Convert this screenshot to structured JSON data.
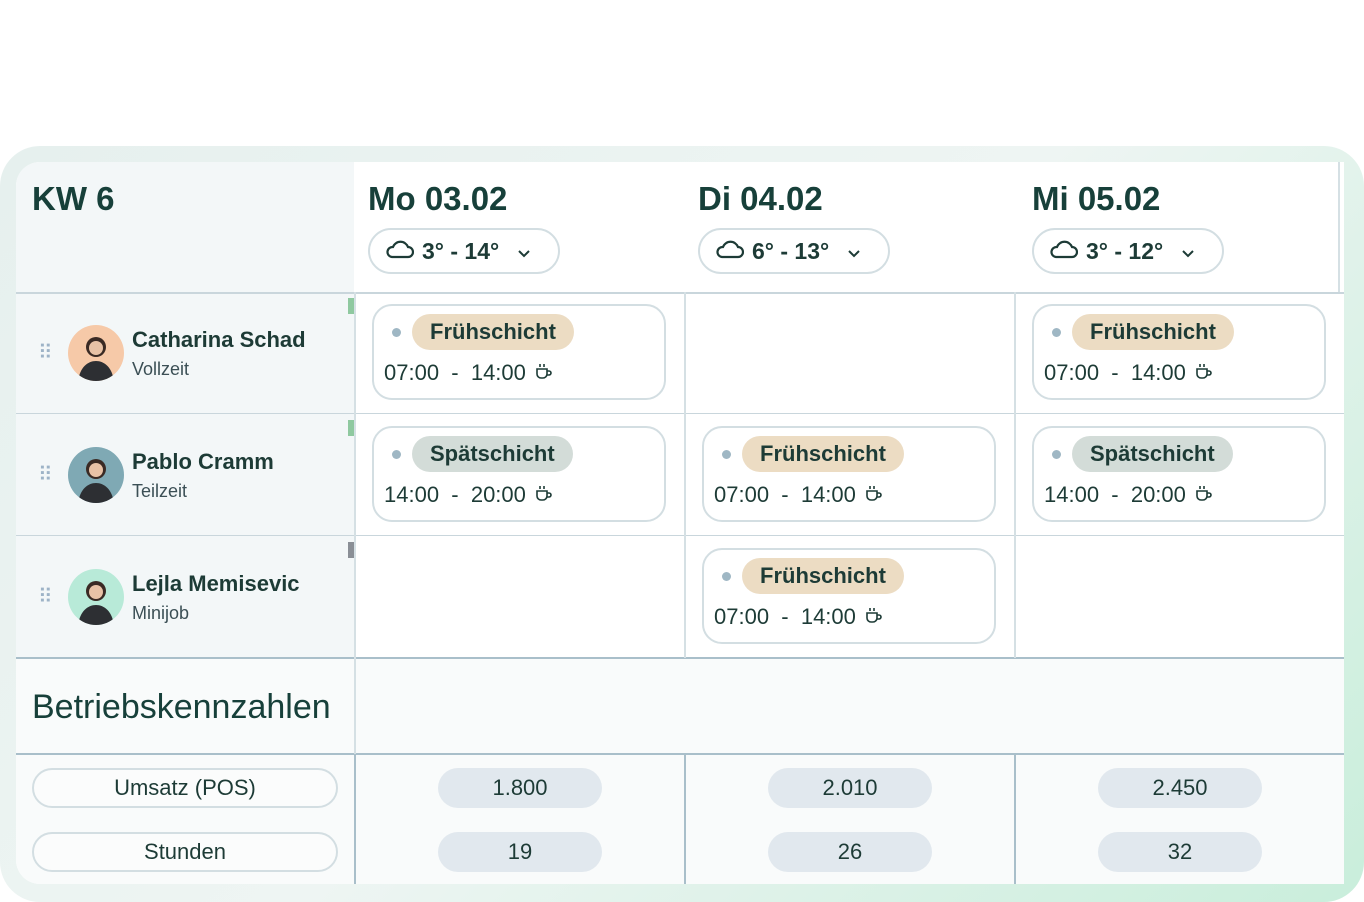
{
  "week": {
    "label": "KW 6"
  },
  "days": [
    {
      "label": "Mo 03.02",
      "weather": "3° - 14°"
    },
    {
      "label": "Di 04.02",
      "weather": "6° - 13°"
    },
    {
      "label": "Mi 05.02",
      "weather": "3° - 12°"
    }
  ],
  "employees": [
    {
      "name": "Catharina Schad",
      "type": "Vollzeit",
      "marker_color": "#8fc9a0",
      "avatar_color": "#f6c9a8"
    },
    {
      "name": "Pablo Cramm",
      "type": "Teilzeit",
      "marker_color": "#8fc9a0",
      "avatar_color": "#7fa9b4"
    },
    {
      "name": "Lejla Memisevic",
      "type": "Minijob",
      "marker_color": "#8a8f96",
      "avatar_color": "#b8ead8"
    }
  ],
  "shifts": {
    "r0d0": {
      "name": "Frühschicht",
      "time": "07:00  -  14:00"
    },
    "r0d2": {
      "name": "Frühschicht",
      "time": "07:00  -  14:00"
    },
    "r1d0": {
      "name": "Spätschicht",
      "time": "14:00  -  20:00"
    },
    "r1d1": {
      "name": "Frühschicht",
      "time": "07:00  -  14:00"
    },
    "r1d2": {
      "name": "Spätschicht",
      "time": "14:00  -  20:00"
    },
    "r2d1": {
      "name": "Frühschicht",
      "time": "07:00  -  14:00"
    }
  },
  "colors": {
    "fruehschicht": "#ecdcc3",
    "spaetschicht": "#d3dcd8"
  },
  "metrics": {
    "title": "Betriebskennzahlen",
    "rows": [
      {
        "label": "Umsatz (POS)",
        "values": [
          "1.800",
          "2.010",
          "2.450"
        ]
      },
      {
        "label": "Stunden",
        "values": [
          "19",
          "26",
          "32"
        ]
      }
    ]
  }
}
